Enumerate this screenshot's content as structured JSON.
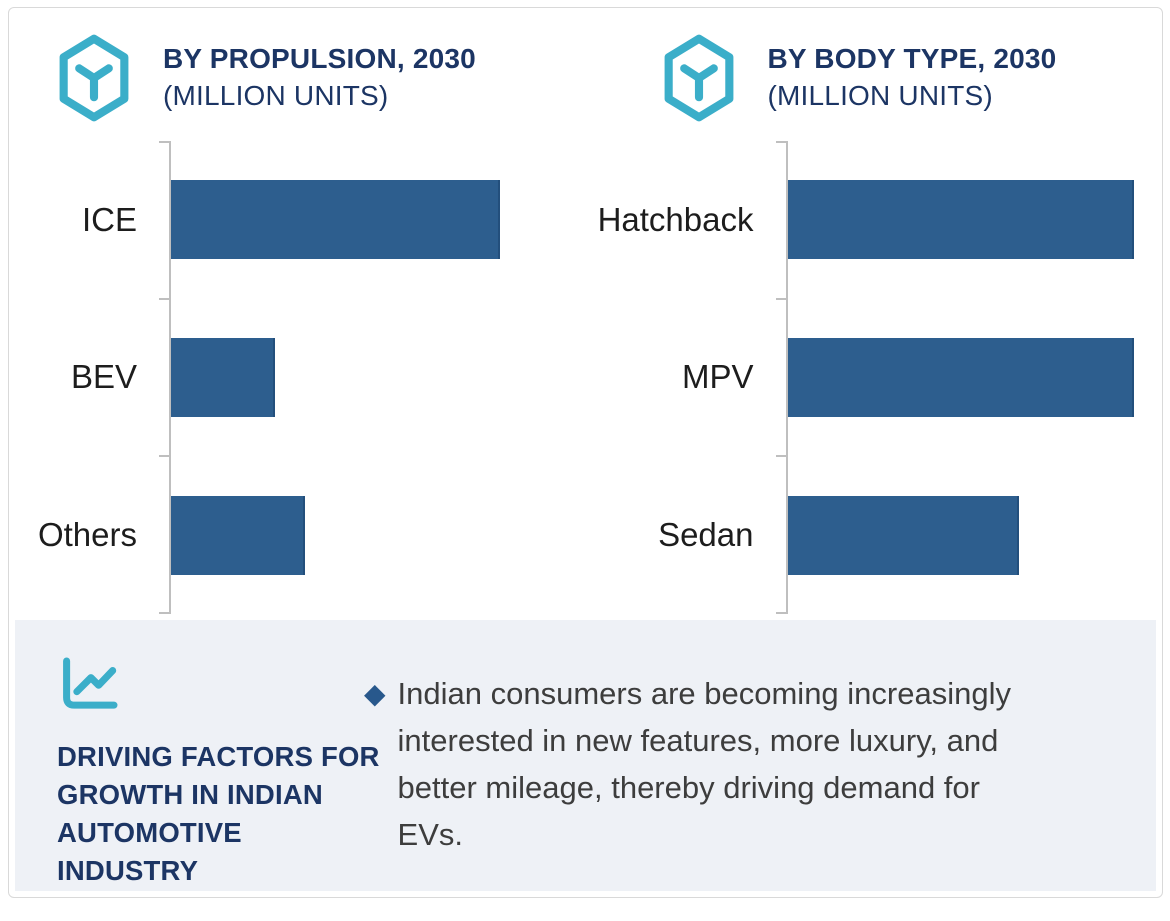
{
  "card": {
    "background": "#ffffff",
    "border_color": "#d9d9d9"
  },
  "colors": {
    "accent_teal": "#3baec9",
    "navy": "#1c3564",
    "bar_fill": "#2d5e8e",
    "bar_edge": "#234f7c",
    "axis": "#bfbfbf",
    "category_label": "#1d1d1d",
    "body_text": "#3d3d3d",
    "footer_bg": "#eef1f6",
    "bullet_marker": "#28588c"
  },
  "chart_data": [
    {
      "type": "bar",
      "orientation": "horizontal",
      "title": "BY PROPULSION, 2030",
      "subtitle": "(MILLION UNITS)",
      "icon": "hexagon-y-icon",
      "categories": [
        "ICE",
        "BEV",
        "Others"
      ],
      "values": [
        1.0,
        0.32,
        0.41
      ],
      "unit": "million units (bars carry no value labels; values are relative estimates with ICE = 1.0)",
      "xlim": [
        0,
        1.26
      ],
      "grid": false,
      "legend": false,
      "value_labels_shown": false,
      "axis_side": "left"
    },
    {
      "type": "bar",
      "orientation": "horizontal",
      "title": "BY BODY TYPE, 2030",
      "subtitle": "(MILLION UNITS)",
      "icon": "hexagon-y-icon",
      "categories": [
        "Hatchback",
        "MPV",
        "Sedan"
      ],
      "values": [
        1.0,
        1.0,
        0.67
      ],
      "unit": "million units (bars carry no value labels; values are relative estimates with Hatchback = 1.0)",
      "xlim": [
        0,
        1.08
      ],
      "grid": false,
      "legend": false,
      "value_labels_shown": false,
      "axis_side": "left"
    }
  ],
  "footer": {
    "icon": "line-chart-icon",
    "heading_lines": [
      "DRIVING FACTORS FOR",
      "GROWTH IN INDIAN",
      "AUTOMOTIVE",
      "INDUSTRY"
    ],
    "bullet": {
      "marker": "◆",
      "lines": [
        "Indian consumers are becoming increasingly",
        "interested in new features, more luxury, and",
        "better mileage, thereby driving demand for",
        "EVs."
      ]
    }
  }
}
